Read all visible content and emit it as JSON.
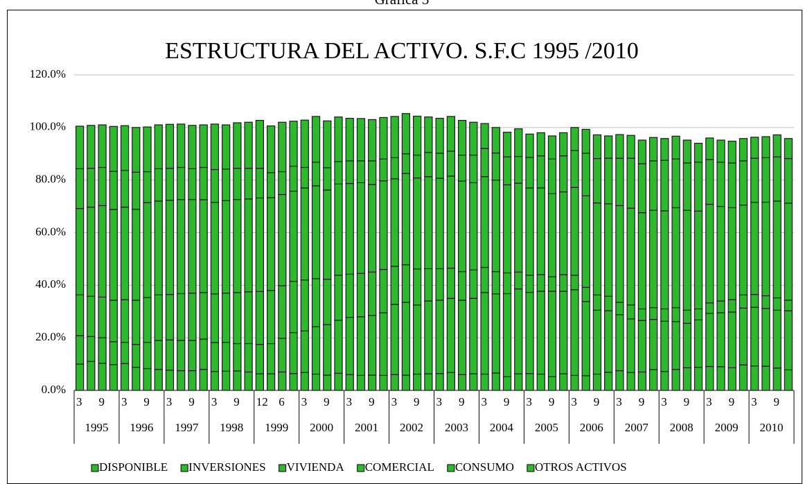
{
  "caption": "Gráfica 3",
  "chart_data": {
    "type": "stacked_bar",
    "title": "ESTRUCTURA DEL ACTIVO. S.F.C 1995 /2010",
    "categories": [
      "3",
      null,
      "9",
      null,
      "3",
      null,
      "9",
      null,
      "3",
      null,
      "9",
      null,
      "3",
      null,
      "9",
      null,
      "12",
      null,
      "6",
      null,
      "3",
      null,
      "9",
      null,
      "3",
      null,
      "9",
      null,
      "3",
      null,
      "9",
      null,
      "3",
      null,
      "9",
      null,
      "3",
      null,
      "9",
      null,
      "3",
      null,
      "9",
      null,
      "3",
      null,
      "9",
      null,
      "3",
      null,
      "9",
      null,
      "3",
      null,
      "9",
      null,
      "3",
      null,
      "9",
      null,
      "3",
      null,
      "9",
      null
    ],
    "category_groups": [
      "1995",
      "1996",
      "1997",
      "1998",
      "1999",
      "2000",
      "2001",
      "2002",
      "2003",
      "2004",
      "2005",
      "2006",
      "2007",
      "2008",
      "2009",
      "2010"
    ],
    "series": [
      {
        "name": "DISPONIBLE",
        "color": "#2db82d",
        "values": [
          10.0,
          11.0,
          10.3,
          9.8,
          10.2,
          8.8,
          8.3,
          8.0,
          7.7,
          7.5,
          7.5,
          8.0,
          7.2,
          7.3,
          7.4,
          7.0,
          6.3,
          6.3,
          7.0,
          6.4,
          6.8,
          6.2,
          5.8,
          6.5,
          6.0,
          5.7,
          5.8,
          5.7,
          6.0,
          5.8,
          6.2,
          6.3,
          6.4,
          6.8,
          6.0,
          6.3,
          6.2,
          6.6,
          5.2,
          6.3,
          6.4,
          6.2,
          5.2,
          6.3,
          5.7,
          5.6,
          6.2,
          6.9,
          7.5,
          6.8,
          7.0,
          7.9,
          7.2,
          8.0,
          8.6,
          8.8,
          9.1,
          9.0,
          8.6,
          9.7,
          9.3,
          9.2,
          8.5,
          7.8
        ]
      },
      {
        "name": "INVERSIONES",
        "color": "#2db82d",
        "values": [
          10.8,
          9.5,
          9.7,
          8.7,
          8.1,
          8.7,
          10.0,
          11.0,
          11.5,
          11.5,
          11.5,
          11.5,
          11.0,
          11.0,
          10.4,
          10.8,
          11.2,
          11.5,
          12.8,
          15.6,
          15.8,
          18.0,
          19.2,
          20.2,
          21.8,
          22.3,
          22.7,
          23.8,
          26.7,
          27.7,
          26.3,
          27.7,
          27.9,
          28.2,
          28.3,
          28.7,
          31.0,
          30.1,
          31.6,
          32.3,
          30.9,
          31.5,
          32.5,
          31.4,
          32.6,
          28.2,
          24.3,
          23.4,
          21.3,
          20.4,
          19.6,
          19.1,
          19.1,
          18.2,
          16.9,
          18.0,
          20.2,
          20.5,
          21.2,
          21.6,
          22.3,
          22.0,
          22.0,
          22.5
        ]
      },
      {
        "name": "VIVIENDA",
        "color": "#2db82d",
        "values": [
          15.5,
          15.3,
          15.5,
          15.8,
          16.2,
          16.8,
          17.0,
          17.3,
          17.3,
          17.8,
          18.0,
          17.7,
          18.5,
          18.7,
          19.4,
          19.7,
          20.1,
          20.2,
          20.0,
          19.5,
          19.4,
          18.3,
          17.3,
          17.1,
          16.4,
          16.5,
          16.5,
          16.5,
          14.5,
          14.3,
          13.7,
          12.3,
          12.0,
          11.5,
          10.9,
          10.8,
          9.6,
          8.5,
          7.9,
          6.4,
          6.5,
          6.3,
          5.5,
          6.3,
          5.5,
          5.4,
          5.8,
          5.5,
          4.7,
          5.3,
          4.4,
          4.5,
          4.7,
          5.3,
          5.0,
          4.2,
          4.0,
          4.5,
          4.7,
          5.0,
          4.9,
          4.8,
          4.7,
          4.0
        ]
      },
      {
        "name": "COMERCIAL",
        "color": "#2db82d",
        "values": [
          32.9,
          33.9,
          34.8,
          34.5,
          35.2,
          34.6,
          36.1,
          35.7,
          35.8,
          35.8,
          35.6,
          35.3,
          34.8,
          35.2,
          35.4,
          35.3,
          35.6,
          35.3,
          34.7,
          34.3,
          35.0,
          35.3,
          33.9,
          34.7,
          34.5,
          34.5,
          33.3,
          33.7,
          33.3,
          34.7,
          34.6,
          35.0,
          34.4,
          35.0,
          34.4,
          33.2,
          34.5,
          34.8,
          33.5,
          33.8,
          33.2,
          33.0,
          31.6,
          31.5,
          33.4,
          34.8,
          35.0,
          35.2,
          36.8,
          36.8,
          36.6,
          37.0,
          37.3,
          38.0,
          38.0,
          37.2,
          37.5,
          36.0,
          35.0,
          34.2,
          35.0,
          35.6,
          36.8,
          36.9
        ]
      },
      {
        "name": "CONSUMO",
        "color": "#2db82d",
        "values": [
          15.1,
          14.8,
          14.5,
          14.5,
          14.0,
          14.1,
          11.8,
          12.3,
          12.2,
          12.2,
          11.7,
          12.3,
          12.5,
          12.0,
          11.9,
          11.7,
          11.3,
          9.5,
          8.7,
          9.5,
          7.8,
          9.0,
          8.5,
          8.5,
          8.6,
          8.3,
          9.0,
          8.3,
          8.0,
          7.5,
          8.7,
          9.2,
          9.5,
          9.5,
          9.9,
          10.5,
          10.7,
          10.3,
          10.6,
          10.2,
          11.6,
          12.2,
          13.2,
          13.7,
          14.0,
          16.2,
          16.9,
          17.3,
          18.0,
          19.0,
          18.6,
          18.8,
          19.2,
          18.5,
          18.0,
          18.6,
          17.0,
          16.8,
          17.0,
          16.8,
          16.8,
          16.9,
          16.8,
          17.0
        ]
      },
      {
        "name": "OTROS ACTIVOS",
        "color": "#2db82d",
        "values": [
          16.2,
          16.3,
          16.2,
          17.1,
          17.0,
          17.0,
          17.0,
          16.7,
          16.7,
          16.5,
          16.5,
          16.2,
          17.3,
          16.8,
          17.3,
          17.5,
          18.2,
          17.8,
          18.8,
          17.1,
          18.0,
          17.4,
          17.8,
          17.0,
          16.2,
          16.1,
          15.7,
          15.8,
          15.7,
          15.3,
          14.8,
          13.5,
          13.3,
          13.2,
          13.2,
          12.5,
          9.5,
          9.7,
          9.4,
          10.5,
          8.9,
          8.8,
          8.8,
          8.8,
          8.8,
          9.1,
          9.0,
          8.5,
          9.0,
          8.7,
          9.0,
          8.9,
          8.3,
          8.7,
          8.7,
          7.2,
          8.2,
          8.4,
          8.3,
          8.5,
          8.0,
          8.0,
          8.4,
          7.6
        ]
      }
    ],
    "ylim": [
      0,
      120
    ],
    "yticks": [
      {
        "value": 0,
        "label": "0.0%"
      },
      {
        "value": 20,
        "label": "20.0%"
      },
      {
        "value": 40,
        "label": "40.0%"
      },
      {
        "value": 60,
        "label": "60.0%"
      },
      {
        "value": 80,
        "label": "80.0%"
      },
      {
        "value": 100,
        "label": "100.0%"
      },
      {
        "value": 120,
        "label": "120.0%"
      }
    ],
    "grid": true,
    "legend": "bottom"
  }
}
